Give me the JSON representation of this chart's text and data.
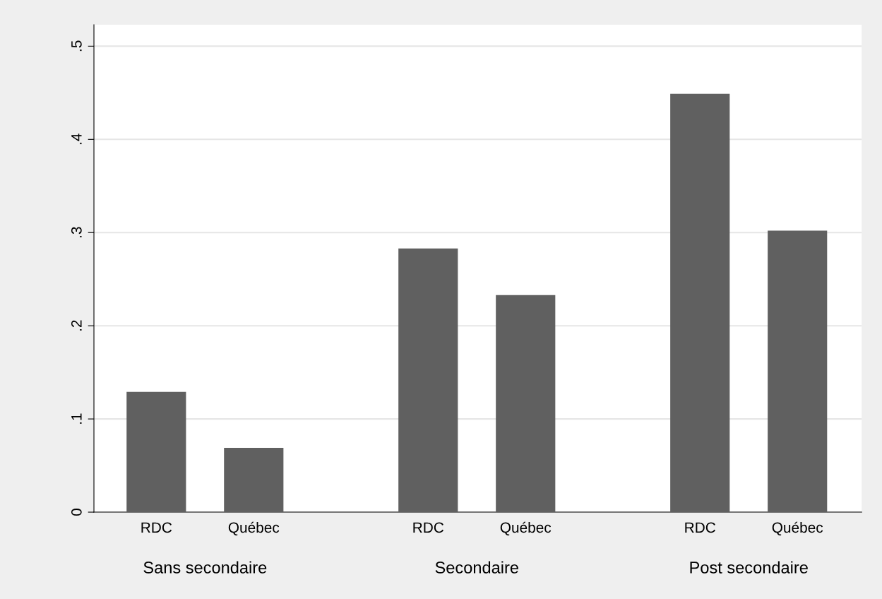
{
  "chart_data": {
    "type": "bar",
    "categories": [
      "RDC",
      "Québec",
      "RDC",
      "Québec",
      "RDC",
      "Québec"
    ],
    "values": [
      0.129,
      0.069,
      0.283,
      0.233,
      0.449,
      0.302
    ],
    "color": "#606060",
    "annotations": [
      "Sans secondaire",
      "Secondaire",
      "Post secondaire"
    ],
    "ylim": [
      0,
      0.523
    ],
    "yticks": [
      0,
      {
        "value": 0.1,
        "label": ".1"
      },
      {
        "value": 0.2,
        "label": ".2"
      },
      {
        "value": 0.3,
        "label": ".3"
      },
      {
        "value": 0.4,
        "label": ".4"
      },
      {
        "value": 0.5,
        "label": ".5"
      }
    ],
    "grid": "y"
  }
}
